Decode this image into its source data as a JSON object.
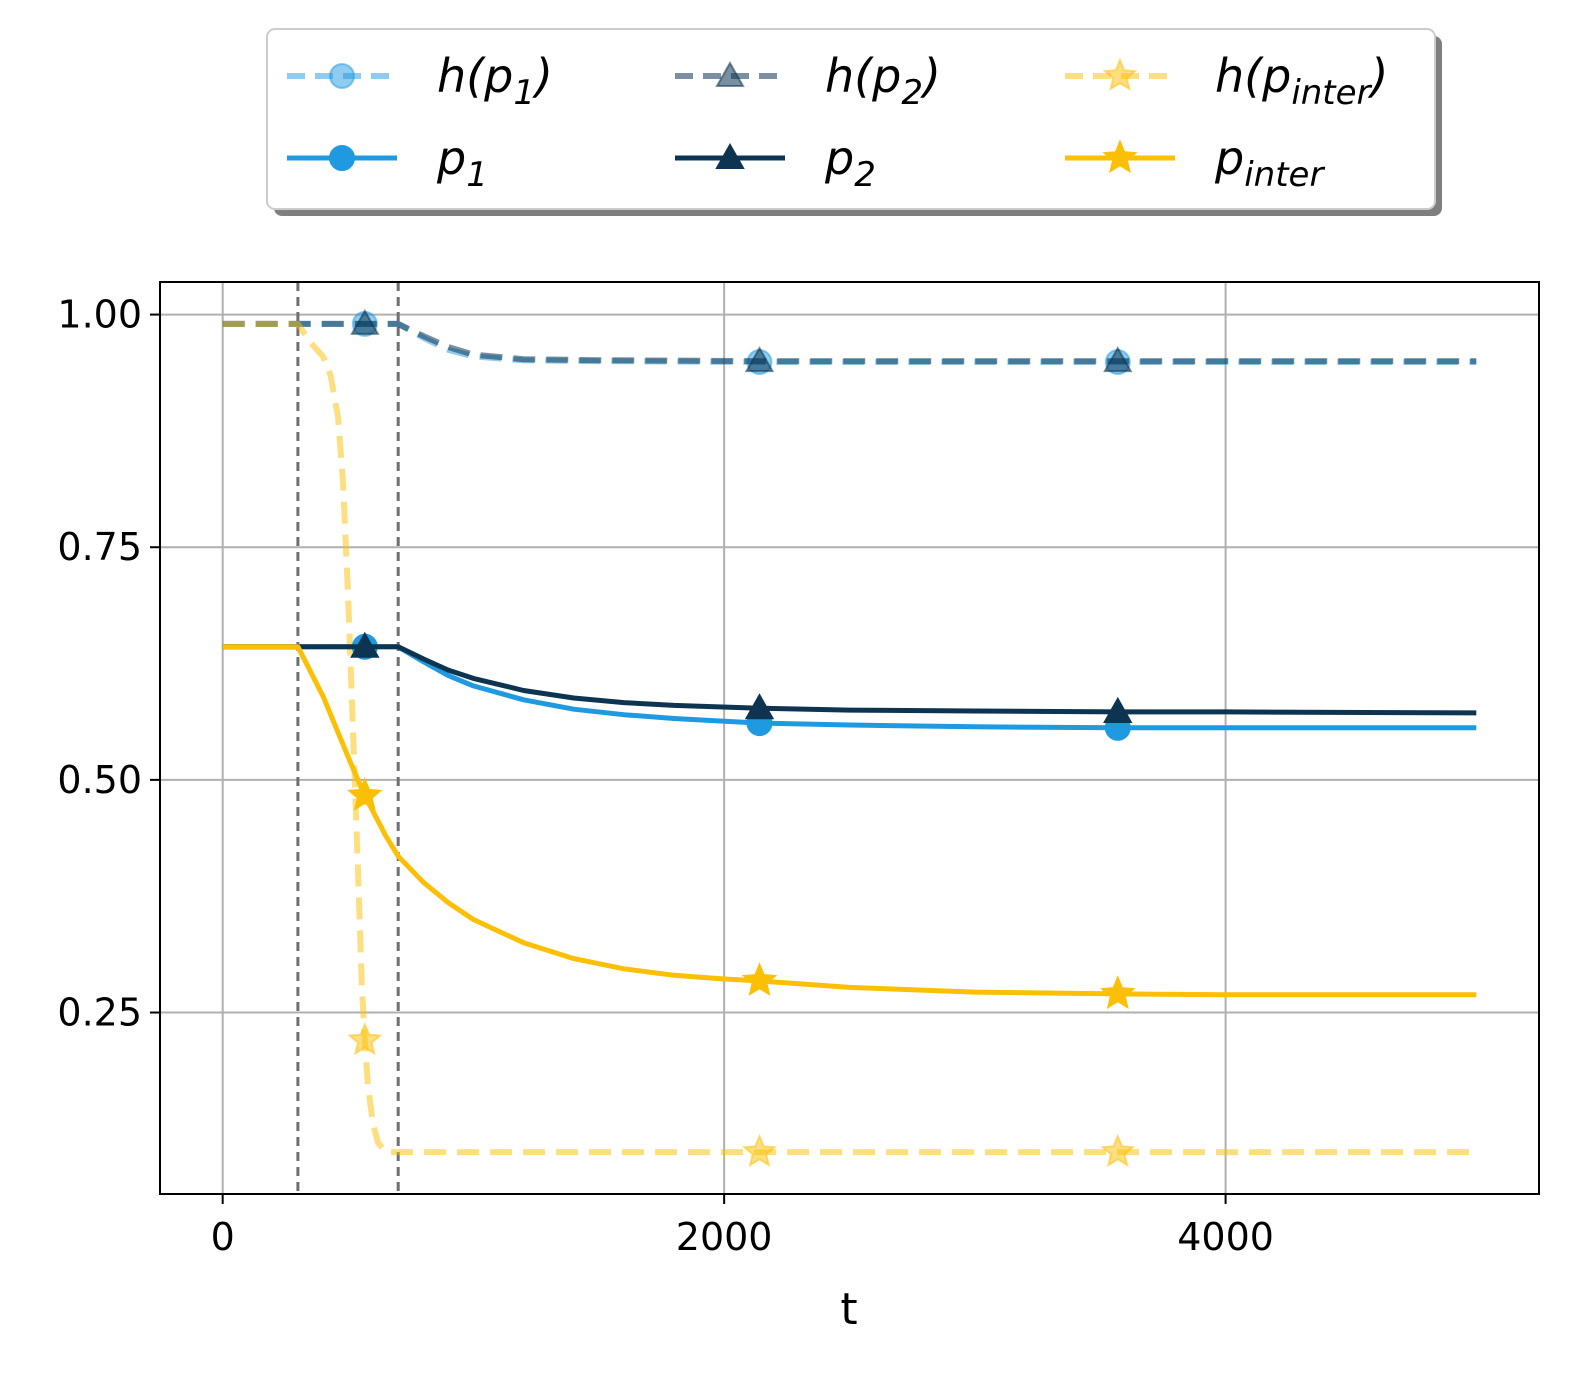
{
  "chart_data": {
    "type": "line",
    "title": "",
    "xlabel": "t",
    "ylabel": "",
    "xlim": [
      -250,
      5250
    ],
    "ylim": [
      0.055,
      1.035
    ],
    "xticks": [
      0,
      2000,
      4000
    ],
    "xtick_labels": [
      "0",
      "2000",
      "4000"
    ],
    "yticks": [
      0.25,
      0.5,
      0.75,
      1.0
    ],
    "ytick_labels": [
      "0.25",
      "0.50",
      "0.75",
      "1.00"
    ],
    "grid": true,
    "vertical_markers": [
      300,
      700
    ],
    "legend_position": "top-center, outside plot, 3 columns",
    "series": [
      {
        "name": "h(p1)",
        "legend_base": "h(p",
        "legend_sub": "1",
        "legend_tail": ")",
        "color": "#1f9ae0",
        "style": "dashed",
        "marker": "circle",
        "alpha": 0.5,
        "x": [
          0,
          300,
          450,
          567,
          700,
          800,
          900,
          1000,
          1200,
          1500,
          2141,
          3000,
          3570,
          5000
        ],
        "y": [
          0.99,
          0.99,
          0.99,
          0.99,
          0.99,
          0.975,
          0.962,
          0.955,
          0.951,
          0.95,
          0.949,
          0.949,
          0.949,
          0.949
        ],
        "marker_x": [
          567,
          2141,
          3570
        ],
        "marker_y": [
          0.99,
          0.949,
          0.949
        ]
      },
      {
        "name": "h(p2)",
        "legend_base": "h(p",
        "legend_sub": "2",
        "legend_tail": ")",
        "color": "#0d3552",
        "style": "dashed",
        "marker": "triangle",
        "alpha": 0.55,
        "x": [
          0,
          300,
          450,
          567,
          700,
          800,
          900,
          1000,
          1200,
          1500,
          2141,
          3000,
          3570,
          5000
        ],
        "y": [
          0.99,
          0.99,
          0.99,
          0.99,
          0.99,
          0.977,
          0.965,
          0.957,
          0.952,
          0.951,
          0.95,
          0.95,
          0.95,
          0.95
        ],
        "marker_x": [
          567,
          2141,
          3570
        ],
        "marker_y": [
          0.99,
          0.95,
          0.95
        ]
      },
      {
        "name": "h(p_inter)",
        "legend_base": "h(p",
        "legend_sub": "inter",
        "legend_tail": ")",
        "color": "#fbbf05",
        "style": "dashed",
        "marker": "star",
        "alpha": 0.5,
        "x": [
          0,
          300,
          350,
          400,
          430,
          460,
          480,
          500,
          520,
          540,
          555,
          567,
          580,
          600,
          620,
          650,
          700,
          800,
          1000,
          2141,
          3570,
          5000
        ],
        "y": [
          0.99,
          0.99,
          0.97,
          0.955,
          0.935,
          0.89,
          0.82,
          0.7,
          0.55,
          0.4,
          0.28,
          0.22,
          0.17,
          0.13,
          0.11,
          0.1,
          0.1,
          0.1,
          0.1,
          0.1,
          0.1,
          0.1
        ],
        "marker_x": [
          567,
          2141,
          3570
        ],
        "marker_y": [
          0.22,
          0.1,
          0.1
        ]
      },
      {
        "name": "p1",
        "legend_base": "p",
        "legend_sub": "1",
        "legend_tail": "",
        "color": "#1f9ae0",
        "style": "solid",
        "marker": "circle",
        "alpha": 1,
        "x": [
          0,
          300,
          567,
          700,
          800,
          900,
          1000,
          1200,
          1400,
          1600,
          1800,
          2141,
          2500,
          3000,
          3570,
          4000,
          5000
        ],
        "y": [
          0.643,
          0.643,
          0.643,
          0.643,
          0.627,
          0.612,
          0.601,
          0.586,
          0.576,
          0.57,
          0.566,
          0.561,
          0.559,
          0.557,
          0.556,
          0.556,
          0.556
        ],
        "marker_x": [
          567,
          2141,
          3570
        ],
        "marker_y": [
          0.643,
          0.561,
          0.556
        ]
      },
      {
        "name": "p2",
        "legend_base": "p",
        "legend_sub": "2",
        "legend_tail": "",
        "color": "#0d3552",
        "style": "solid",
        "marker": "triangle",
        "alpha": 1,
        "x": [
          0,
          300,
          567,
          700,
          800,
          900,
          1000,
          1200,
          1400,
          1600,
          1800,
          2141,
          2500,
          3000,
          3570,
          4000,
          5000
        ],
        "y": [
          0.643,
          0.643,
          0.643,
          0.643,
          0.63,
          0.618,
          0.609,
          0.596,
          0.588,
          0.583,
          0.58,
          0.577,
          0.575,
          0.574,
          0.573,
          0.573,
          0.572
        ],
        "marker_x": [
          567,
          2141,
          3570
        ],
        "marker_y": [
          0.643,
          0.577,
          0.573
        ]
      },
      {
        "name": "p_inter",
        "legend_base": "p",
        "legend_sub": "inter",
        "legend_tail": "",
        "color": "#fbbf05",
        "style": "solid",
        "marker": "star",
        "alpha": 1,
        "x": [
          0,
          300,
          400,
          500,
          567,
          650,
          700,
          800,
          900,
          1000,
          1200,
          1400,
          1600,
          1800,
          2000,
          2141,
          2500,
          3000,
          3570,
          4000,
          5000
        ],
        "y": [
          0.643,
          0.643,
          0.59,
          0.525,
          0.483,
          0.44,
          0.418,
          0.39,
          0.368,
          0.35,
          0.325,
          0.308,
          0.297,
          0.29,
          0.286,
          0.284,
          0.277,
          0.272,
          0.27,
          0.269,
          0.269
        ],
        "marker_x": [
          567,
          2141,
          3570
        ],
        "marker_y": [
          0.483,
          0.284,
          0.27
        ]
      }
    ]
  }
}
